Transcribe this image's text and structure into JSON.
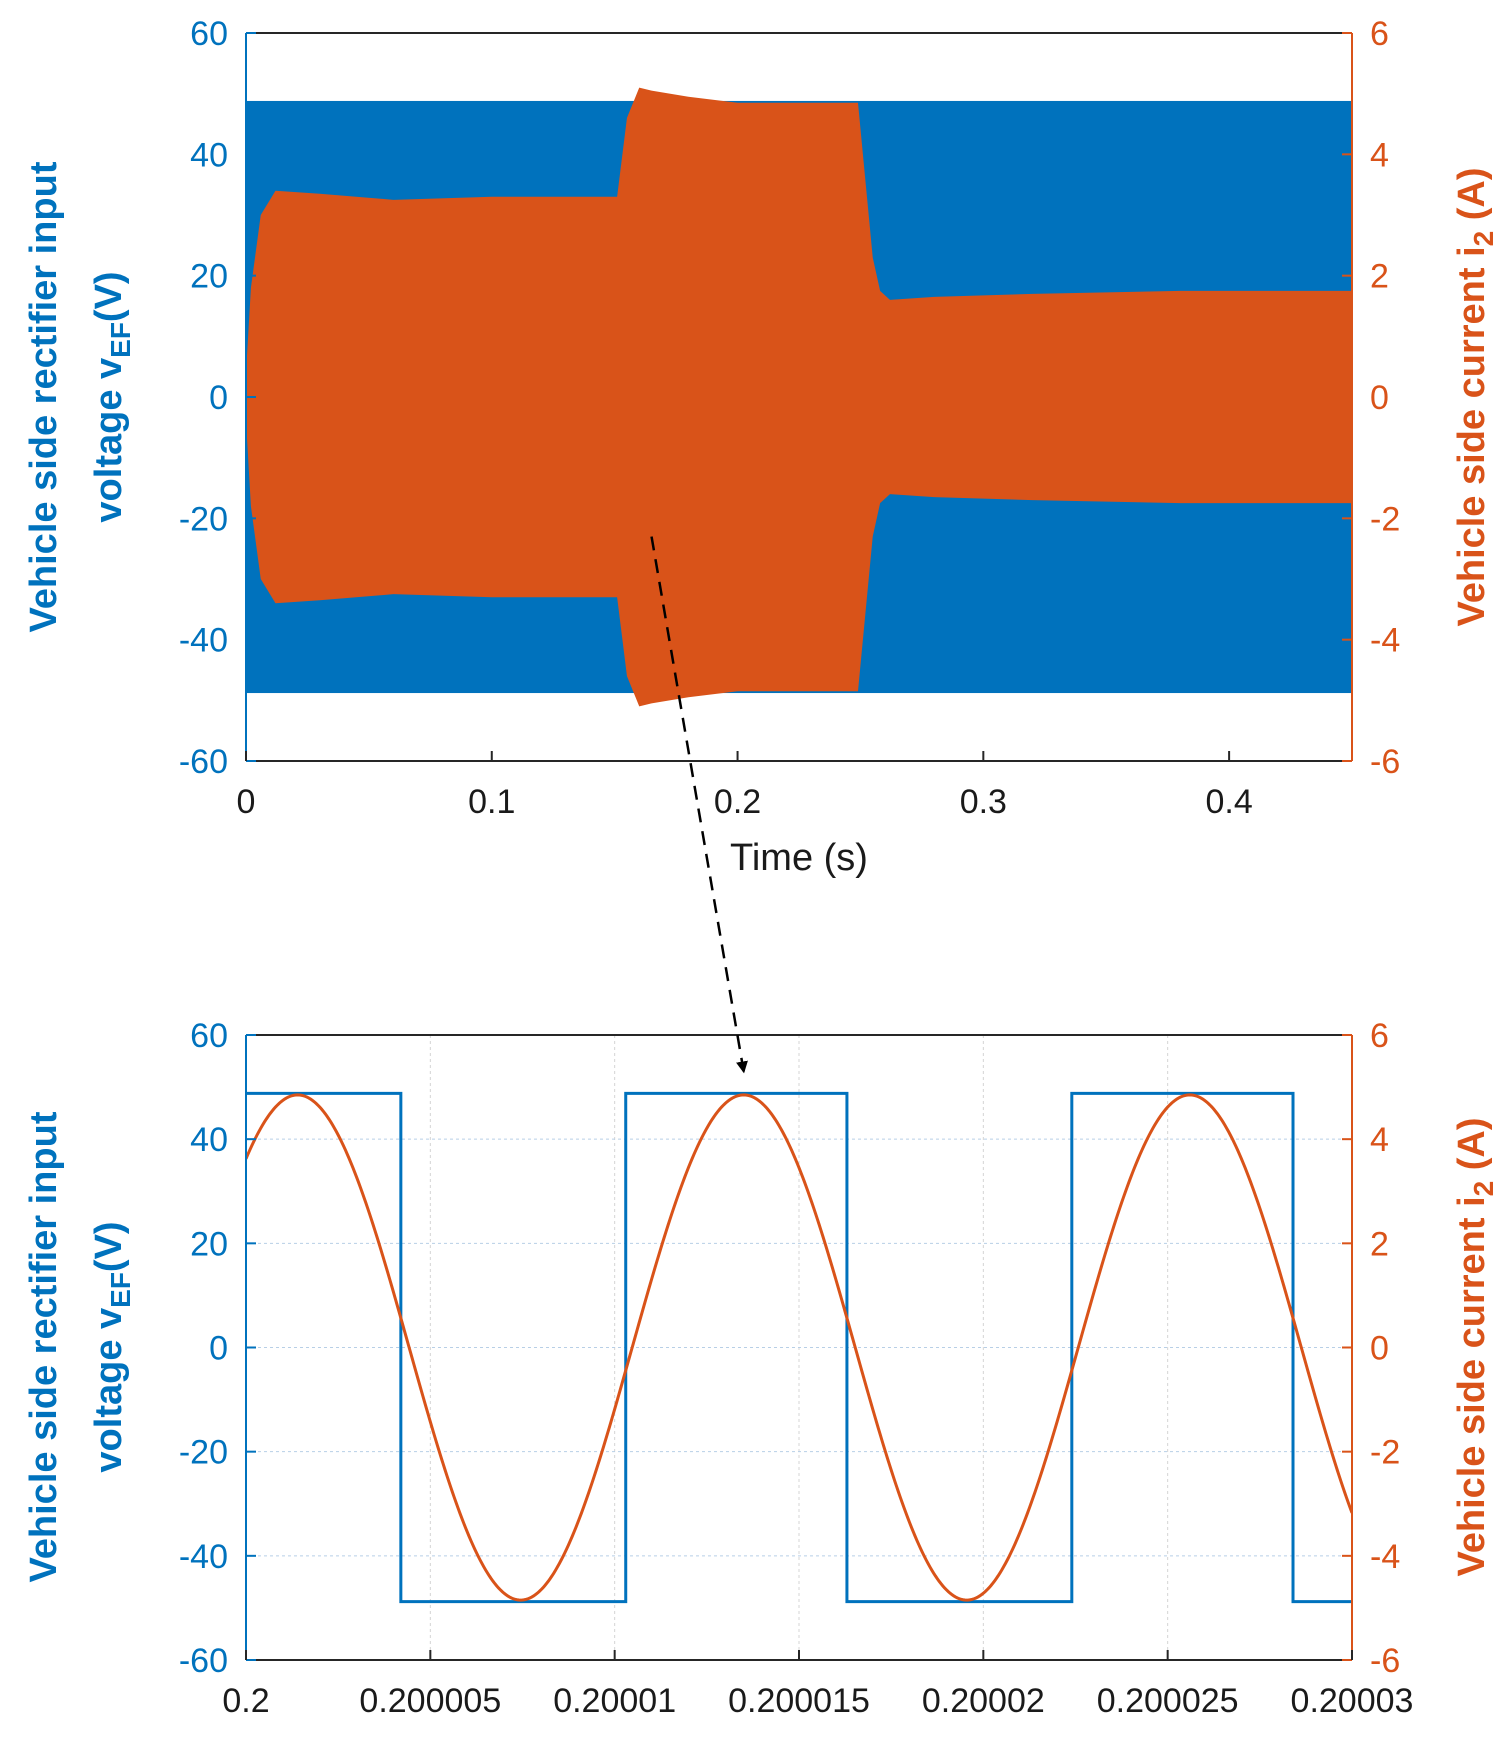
{
  "colors": {
    "voltage": "#0072bd",
    "current": "#d95319",
    "axis": "#262626",
    "grid": "#b8cfe6",
    "arrow": "#000000"
  },
  "chart_data": [
    {
      "type": "line",
      "panel": "overview",
      "xlabel": "Time (s)",
      "xlim": [
        0,
        0.45
      ],
      "xticks": [
        0,
        0.1,
        0.2,
        0.3,
        0.4
      ],
      "xtick_labels": [
        "0",
        "0.1",
        "0.2",
        "0.3",
        "0.4"
      ],
      "ylabel_left_line1": "Vehicle side rectifier input",
      "ylabel_left_line2_main": "voltage v",
      "ylabel_left_line2_sub": "EF",
      "ylabel_left_line2_tail": "(V)",
      "ylim_left": [
        -60,
        60
      ],
      "yticks_left": [
        -60,
        -40,
        -20,
        0,
        20,
        40,
        60
      ],
      "ytick_labels_left": [
        "-60",
        "-40",
        "-20",
        "0",
        "20",
        "40",
        "60"
      ],
      "ylabel_right_main": "Vehicle side current i",
      "ylabel_right_sub": "2",
      "ylabel_right_tail": " (A)",
      "ylim_right": [
        -6,
        6
      ],
      "yticks_right": [
        -6,
        -4,
        -2,
        0,
        2,
        4,
        6
      ],
      "ytick_labels_right": [
        "-6",
        "-4",
        "-2",
        "0",
        "2",
        "4",
        "6"
      ],
      "grid": false,
      "series": [
        {
          "name": "v_EF",
          "axis": "left",
          "kind": "envelope",
          "t": [
            0,
            0.45
          ],
          "upper": [
            48.8,
            48.8
          ],
          "lower": [
            -48.8,
            -48.8
          ]
        },
        {
          "name": "i_2",
          "axis": "right",
          "kind": "envelope",
          "t": [
            0,
            0.002,
            0.006,
            0.012,
            0.03,
            0.06,
            0.1,
            0.149,
            0.151,
            0.155,
            0.16,
            0.165,
            0.18,
            0.2,
            0.249,
            0.251,
            0.255,
            0.258,
            0.262,
            0.28,
            0.32,
            0.38,
            0.45
          ],
          "upper": [
            0.4,
            1.8,
            3.0,
            3.4,
            3.35,
            3.25,
            3.3,
            3.3,
            3.3,
            4.6,
            5.1,
            5.05,
            4.95,
            4.85,
            4.85,
            4.0,
            2.3,
            1.75,
            1.6,
            1.65,
            1.7,
            1.75,
            1.75
          ],
          "lower": [
            -0.4,
            -1.8,
            -3.0,
            -3.4,
            -3.35,
            -3.25,
            -3.3,
            -3.3,
            -3.3,
            -4.6,
            -5.1,
            -5.05,
            -4.95,
            -4.85,
            -4.85,
            -4.0,
            -2.3,
            -1.75,
            -1.6,
            -1.65,
            -1.7,
            -1.75,
            -1.75
          ]
        }
      ],
      "annotation": {
        "type": "arrow",
        "style": "dashed",
        "from": {
          "x": 0.165,
          "y": -23
        },
        "to_panel": "zoom",
        "to": {
          "x": 0.2000135,
          "y": 53
        }
      }
    },
    {
      "type": "line",
      "panel": "zoom",
      "xlabel": "",
      "xlim": [
        0.2,
        0.20003
      ],
      "xticks": [
        0.2,
        0.200005,
        0.20001,
        0.200015,
        0.20002,
        0.200025,
        0.20003
      ],
      "xtick_labels": [
        "0.2",
        "0.200005",
        "0.20001",
        "0.200015",
        "0.20002",
        "0.200025",
        "0.20003"
      ],
      "ylabel_left_line1": "Vehicle side rectifier input",
      "ylabel_left_line2_main": "voltage v",
      "ylabel_left_line2_sub": "EF",
      "ylabel_left_line2_tail": "(V)",
      "ylim_left": [
        -60,
        60
      ],
      "yticks_left": [
        -60,
        -40,
        -20,
        0,
        20,
        40,
        60
      ],
      "ytick_labels_left": [
        "-60",
        "-40",
        "-20",
        "0",
        "20",
        "40",
        "60"
      ],
      "ylabel_right_main": "Vehicle side current i",
      "ylabel_right_sub": "2",
      "ylabel_right_tail": " (A)",
      "ylim_right": [
        -6,
        6
      ],
      "yticks_right": [
        -6,
        -4,
        -2,
        0,
        2,
        4,
        6
      ],
      "ytick_labels_right": [
        "-6",
        "-4",
        "-2",
        "0",
        "2",
        "4",
        "6"
      ],
      "grid": true,
      "series": [
        {
          "name": "v_EF",
          "axis": "left",
          "kind": "step",
          "x": [
            0.2,
            0.2000042,
            0.2000042,
            0.2000103,
            0.2000103,
            0.2000163,
            0.2000163,
            0.2000224,
            0.2000224,
            0.2000284,
            0.2000284,
            0.20003
          ],
          "y": [
            48.8,
            48.8,
            -48.8,
            -48.8,
            48.8,
            48.8,
            -48.8,
            -48.8,
            48.8,
            48.8,
            -48.8,
            -48.8
          ]
        },
        {
          "name": "i_2",
          "axis": "right",
          "kind": "sine",
          "amplitude": 4.85,
          "period": 1.21e-05,
          "peak_time": 0.2000014,
          "x_range": [
            0.2,
            0.20003
          ]
        }
      ]
    }
  ]
}
